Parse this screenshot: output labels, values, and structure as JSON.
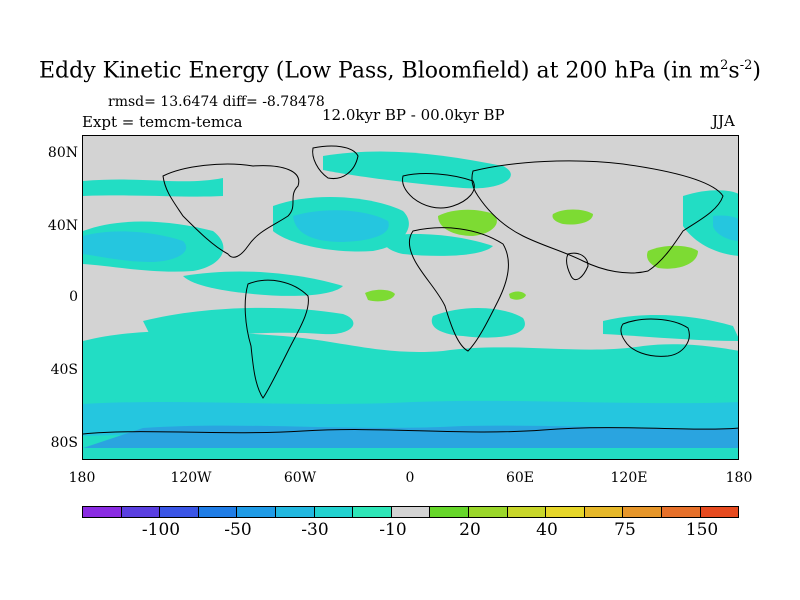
{
  "title": {
    "text": "Eddy Kinetic Energy (Low Pass, Bloomfield) at 200 hPa (in m",
    "sup1": "2",
    "mid": "s",
    "sup2": "-2",
    "end": ")"
  },
  "stats": "rmsd= 13.6474 diff= -8.78478",
  "expt": "Expt = temcm-temca",
  "period": "12.0kyr BP - 00.0kyr BP",
  "season": "JJA",
  "lat_labels": [
    "80N",
    "40N",
    "0",
    "40S",
    "80S"
  ],
  "lon_labels": [
    "180",
    "120W",
    "60W",
    "0",
    "60E",
    "120E",
    "180"
  ],
  "colorbar": {
    "colors": [
      "#8a2be2",
      "#5a3fe0",
      "#3a55e6",
      "#1f7de6",
      "#1f9be6",
      "#22b8e0",
      "#22d2d0",
      "#2ee6b8",
      "#d3d3d3",
      "#66d62a",
      "#9ad62a",
      "#c8d62a",
      "#e6d62a",
      "#e6b82a",
      "#e6962a",
      "#e6702a",
      "#e64a1f"
    ],
    "labels": [
      "-100",
      "-50",
      "-30",
      "-10",
      "20",
      "40",
      "75",
      "150"
    ]
  },
  "field_colors": {
    "teal": "#22ddc4",
    "cyan": "#25c6df",
    "blue": "#2aa4e0",
    "green": "#7ddb33",
    "land_line": "#000000"
  }
}
